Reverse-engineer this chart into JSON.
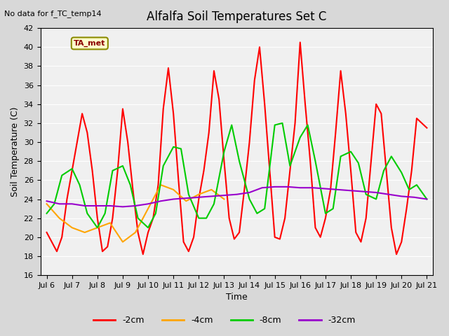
{
  "title": "Alfalfa Soil Temperatures Set C",
  "xlabel": "Time",
  "ylabel": "Soil Temperature (C)",
  "note": "No data for f_TC_temp14",
  "legend_label": "TA_met",
  "ylim": [
    16,
    42
  ],
  "yticks": [
    16,
    18,
    20,
    22,
    24,
    26,
    28,
    30,
    32,
    34,
    36,
    38,
    40,
    42
  ],
  "x_start": 5.75,
  "x_end": 21.25,
  "xtick_labels": [
    "Jul 6",
    "Jul 7",
    "Jul 8",
    "Jul 9",
    "Jul 10",
    "Jul 11",
    "Jul 12",
    "Jul 13",
    "Jul 14",
    "Jul 15",
    "Jul 16",
    "Jul 17",
    "Jul 18",
    "Jul 19",
    "Jul 20",
    "Jul 21"
  ],
  "xtick_positions": [
    6,
    7,
    8,
    9,
    10,
    11,
    12,
    13,
    14,
    15,
    16,
    17,
    18,
    19,
    20,
    21
  ],
  "bg_color": "#e8e8e8",
  "plot_bg_color": "#f0f0f0",
  "line_colors": {
    "m2cm": "#ff0000",
    "m4cm": "#ffa500",
    "m8cm": "#00cc00",
    "m32cm": "#9900cc"
  },
  "legend_labels": [
    "-2cm",
    "-4cm",
    "-8cm",
    "-32cm"
  ],
  "m2cm_x": [
    6.0,
    6.2,
    6.4,
    6.6,
    6.8,
    7.0,
    7.2,
    7.4,
    7.6,
    7.8,
    8.0,
    8.2,
    8.4,
    8.6,
    8.8,
    9.0,
    9.2,
    9.4,
    9.6,
    9.8,
    10.0,
    10.2,
    10.4,
    10.6,
    10.8,
    11.0,
    11.2,
    11.4,
    11.6,
    11.8,
    12.0,
    12.2,
    12.4,
    12.6,
    12.8,
    13.0,
    13.2,
    13.4,
    13.6,
    13.8,
    14.0,
    14.2,
    14.4,
    14.6,
    14.8,
    15.0,
    15.2,
    15.4,
    15.6,
    15.8,
    16.0,
    16.2,
    16.4,
    16.6,
    16.8,
    17.0,
    17.2,
    17.4,
    17.6,
    17.8,
    18.0,
    18.2,
    18.4,
    18.6,
    18.8,
    19.0,
    19.2,
    19.4,
    19.6,
    19.8,
    20.0,
    20.2,
    20.4,
    20.6,
    20.8,
    21.0
  ],
  "m2cm_y": [
    20.5,
    19.5,
    18.5,
    20.0,
    24.0,
    27.0,
    30.0,
    33.0,
    31.0,
    27.0,
    22.0,
    18.5,
    19.0,
    22.0,
    27.0,
    33.5,
    30.0,
    25.0,
    20.5,
    18.2,
    20.5,
    22.0,
    25.5,
    33.5,
    37.8,
    33.0,
    26.0,
    19.5,
    18.5,
    20.0,
    24.0,
    27.0,
    31.0,
    37.5,
    34.5,
    28.0,
    22.0,
    19.8,
    20.5,
    25.0,
    30.0,
    36.5,
    40.0,
    34.0,
    27.0,
    20.0,
    19.8,
    22.0,
    27.0,
    32.0,
    40.5,
    34.0,
    28.0,
    21.0,
    20.0,
    22.0,
    25.0,
    31.0,
    37.5,
    33.0,
    27.0,
    20.5,
    19.5,
    22.0,
    28.0,
    34.0,
    33.0,
    27.0,
    21.0,
    18.2,
    19.5,
    23.0,
    27.0,
    32.5,
    32.0,
    31.5
  ],
  "m4cm_x": [
    6.0,
    6.5,
    7.0,
    7.5,
    8.0,
    8.5,
    9.0,
    9.5,
    10.0,
    10.5,
    11.0,
    11.5,
    12.0,
    12.5,
    13.0
  ],
  "m4cm_y": [
    23.5,
    22.0,
    21.0,
    20.5,
    21.0,
    21.5,
    19.5,
    20.5,
    23.0,
    25.5,
    25.0,
    23.8,
    24.5,
    25.0,
    24.0
  ],
  "m8cm_x": [
    6.0,
    6.3,
    6.6,
    7.0,
    7.3,
    7.6,
    8.0,
    8.3,
    8.6,
    9.0,
    9.3,
    9.6,
    10.0,
    10.3,
    10.6,
    11.0,
    11.3,
    11.6,
    12.0,
    12.3,
    12.6,
    13.0,
    13.3,
    13.6,
    14.0,
    14.3,
    14.6,
    15.0,
    15.3,
    15.6,
    16.0,
    16.3,
    16.6,
    17.0,
    17.3,
    17.6,
    18.0,
    18.3,
    18.6,
    19.0,
    19.3,
    19.6,
    20.0,
    20.3,
    20.6,
    21.0
  ],
  "m8cm_y": [
    22.5,
    23.5,
    26.5,
    27.2,
    25.5,
    22.5,
    21.0,
    22.5,
    27.0,
    27.5,
    25.5,
    22.0,
    21.0,
    22.5,
    27.5,
    29.5,
    29.3,
    24.5,
    22.0,
    22.0,
    23.5,
    29.0,
    31.8,
    28.0,
    24.0,
    22.5,
    23.0,
    31.8,
    32.0,
    27.5,
    30.5,
    31.8,
    28.0,
    22.5,
    23.0,
    28.5,
    29.0,
    27.8,
    24.5,
    24.0,
    27.0,
    28.5,
    26.8,
    25.0,
    25.5,
    24.0
  ],
  "m32cm_x": [
    6.0,
    6.5,
    7.0,
    7.5,
    8.0,
    8.5,
    9.0,
    9.5,
    10.0,
    10.5,
    11.0,
    11.5,
    12.0,
    12.5,
    13.0,
    13.5,
    14.0,
    14.5,
    15.0,
    15.5,
    16.0,
    16.5,
    17.0,
    17.5,
    18.0,
    18.5,
    19.0,
    19.5,
    20.0,
    20.5,
    21.0
  ],
  "m32cm_y": [
    23.8,
    23.5,
    23.5,
    23.3,
    23.3,
    23.3,
    23.2,
    23.3,
    23.5,
    23.8,
    24.0,
    24.1,
    24.2,
    24.3,
    24.4,
    24.5,
    24.7,
    25.2,
    25.3,
    25.3,
    25.2,
    25.2,
    25.1,
    25.0,
    24.9,
    24.8,
    24.7,
    24.5,
    24.3,
    24.2,
    24.0
  ]
}
